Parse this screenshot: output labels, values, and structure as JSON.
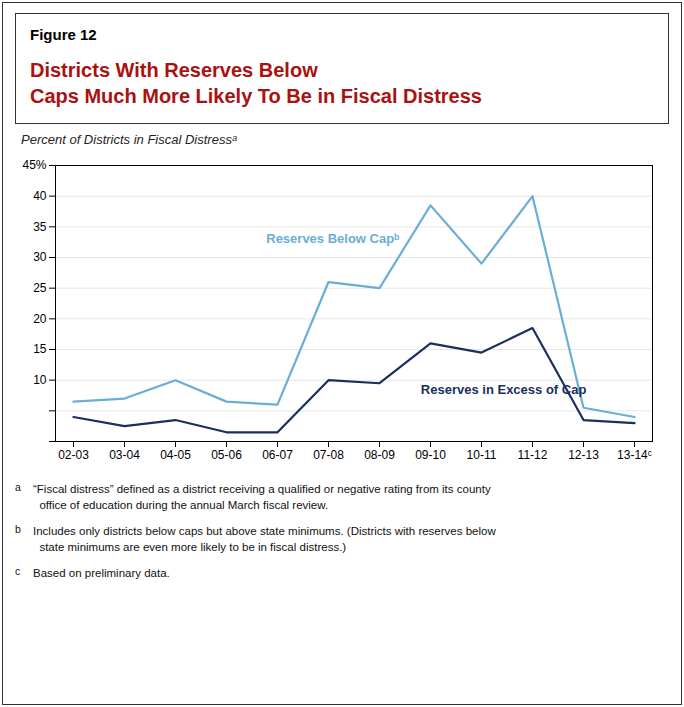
{
  "chart_data": {
    "type": "line",
    "figure_label": "Figure 12",
    "title": "Districts With Reserves Below\nCaps Much More Likely To Be in Fiscal Distress",
    "subtitle": "Percent of Districts in Fiscal Distressᵃ",
    "categories": [
      "02-03",
      "03-04",
      "04-05",
      "05-06",
      "06-07",
      "07-08",
      "08-09",
      "09-10",
      "10-11",
      "11-12",
      "12-13",
      "13-14ᶜ"
    ],
    "series": [
      {
        "name": "Reserves Below Capᵇ",
        "color": "#6aaed6",
        "values": [
          6.5,
          7.0,
          10.0,
          6.5,
          6.0,
          26.0,
          25.0,
          38.5,
          29.0,
          40.0,
          5.5,
          4.0
        ]
      },
      {
        "name": "Reserves in Excess of Cap",
        "color": "#1a2f5e",
        "values": [
          4.0,
          2.5,
          3.5,
          1.5,
          1.5,
          10.0,
          9.5,
          16.0,
          14.5,
          18.5,
          3.5,
          3.0
        ]
      }
    ],
    "ylim": [
      0,
      45
    ],
    "yticks": [
      {
        "value": 0,
        "label": ""
      },
      {
        "value": 5,
        "label": ""
      },
      10,
      15,
      20,
      25,
      30,
      35,
      40,
      {
        "value": 45,
        "label": "45%"
      }
    ],
    "grid": true,
    "footnotes": [
      {
        "marker": "a",
        "text": "“Fiscal distress” defined as a district receiving a qualified or negative rating from its county\n  office of education during the annual March fiscal review."
      },
      {
        "marker": "b",
        "text": "Includes only districts below caps but above state minimums. (Districts with reserves below\n  state minimums are even more likely to be in fiscal distress.)"
      },
      {
        "marker": "c",
        "text": "Based on preliminary data."
      }
    ]
  }
}
